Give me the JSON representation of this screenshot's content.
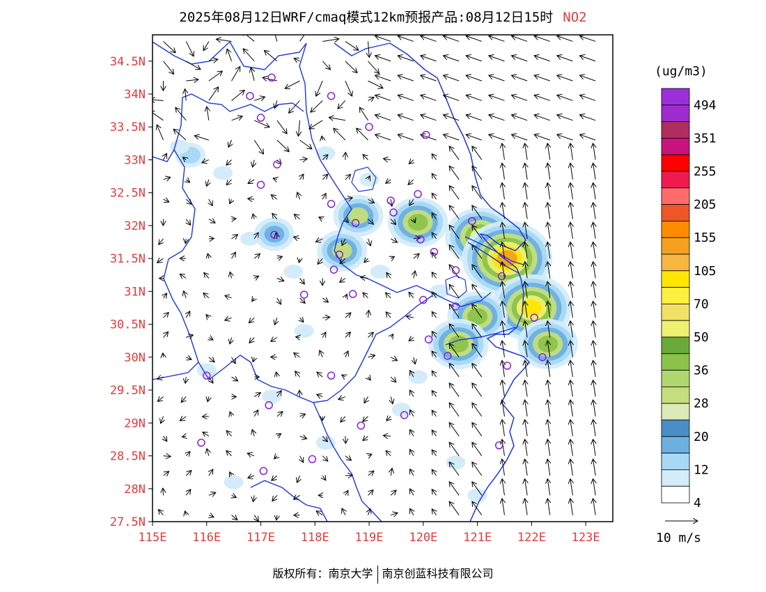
{
  "header": {
    "title": "2025年08月12日WRF/cmaq模式12km预报产品:08月12日15时",
    "pollutant": "NO2"
  },
  "axes": {
    "lat_labels": [
      "34.5N",
      "34N",
      "33.5N",
      "33N",
      "32.5N",
      "32N",
      "31.5N",
      "31N",
      "30.5N",
      "30N",
      "29.5N",
      "29N",
      "28.5N",
      "28N",
      "27.5N"
    ],
    "lon_labels": [
      "115E",
      "116E",
      "117E",
      "118E",
      "119E",
      "120E",
      "121E",
      "122E",
      "123E"
    ],
    "lon_range": [
      115,
      123.5
    ],
    "lat_range": [
      27.5,
      34.9
    ]
  },
  "legend": {
    "unit": "(ug/m3)",
    "labels": [
      "494",
      "351",
      "255",
      "205",
      "155",
      "105",
      "70",
      "50",
      "36",
      "28",
      "20",
      "12",
      "4"
    ],
    "colors_top_to_bottom": [
      "#9b30d8",
      "#a02bd0",
      "#b02d60",
      "#c8147c",
      "#ff0000",
      "#ee1c50",
      "#ff6b6b",
      "#ee5628",
      "#ff8c00",
      "#f5a020",
      "#f7b640",
      "#ffe600",
      "#ffef40",
      "#f2e068",
      "#eef070",
      "#6aaa3a",
      "#8cc24a",
      "#b0d670",
      "#c4de7c",
      "#dde9b8",
      "#4a8ec8",
      "#6cb0e0",
      "#a8d8f4",
      "#d4ecfa",
      "#ffffff"
    ]
  },
  "wind_scale": {
    "label": "10 m/s"
  },
  "footer": {
    "left": "版权所有：南京大学",
    "right": "南京创蓝科技有限公司"
  },
  "colors": {
    "boundary": "#1a35e0",
    "station": "#8a1fd0",
    "tick_text": "#e33b3b"
  },
  "stations": [
    {
      "lon": 117.2,
      "lat": 34.25
    },
    {
      "lon": 116.8,
      "lat": 33.97
    },
    {
      "lon": 118.3,
      "lat": 33.97
    },
    {
      "lon": 117.0,
      "lat": 33.64
    },
    {
      "lon": 119.0,
      "lat": 33.5
    },
    {
      "lon": 120.05,
      "lat": 33.38
    },
    {
      "lon": 117.3,
      "lat": 32.93
    },
    {
      "lon": 117.0,
      "lat": 32.62
    },
    {
      "lon": 118.3,
      "lat": 32.33
    },
    {
      "lon": 119.4,
      "lat": 32.38
    },
    {
      "lon": 119.9,
      "lat": 32.48
    },
    {
      "lon": 119.45,
      "lat": 32.2
    },
    {
      "lon": 120.9,
      "lat": 32.07
    },
    {
      "lon": 118.75,
      "lat": 32.04
    },
    {
      "lon": 117.25,
      "lat": 31.86
    },
    {
      "lon": 119.95,
      "lat": 31.79
    },
    {
      "lon": 118.45,
      "lat": 31.56
    },
    {
      "lon": 120.2,
      "lat": 31.6
    },
    {
      "lon": 118.35,
      "lat": 31.33
    },
    {
      "lon": 120.6,
      "lat": 31.32
    },
    {
      "lon": 121.45,
      "lat": 31.23
    },
    {
      "lon": 117.8,
      "lat": 30.95
    },
    {
      "lon": 118.7,
      "lat": 30.96
    },
    {
      "lon": 120.0,
      "lat": 30.87
    },
    {
      "lon": 120.6,
      "lat": 30.77
    },
    {
      "lon": 122.05,
      "lat": 30.6
    },
    {
      "lon": 120.1,
      "lat": 30.27
    },
    {
      "lon": 120.45,
      "lat": 30.02
    },
    {
      "lon": 121.55,
      "lat": 29.87
    },
    {
      "lon": 122.2,
      "lat": 30.0
    },
    {
      "lon": 116.0,
      "lat": 29.72
    },
    {
      "lon": 118.3,
      "lat": 29.72
    },
    {
      "lon": 117.15,
      "lat": 29.27
    },
    {
      "lon": 119.65,
      "lat": 29.12
    },
    {
      "lon": 118.85,
      "lat": 28.96
    },
    {
      "lon": 115.9,
      "lat": 28.7
    },
    {
      "lon": 121.4,
      "lat": 28.66
    },
    {
      "lon": 117.95,
      "lat": 28.45
    },
    {
      "lon": 117.05,
      "lat": 28.27
    }
  ],
  "concentration_patches": [
    {
      "lon": 115.7,
      "lat": 33.07,
      "level": 12
    },
    {
      "lon": 117.25,
      "lat": 31.87,
      "level": 20
    },
    {
      "lon": 118.5,
      "lat": 31.62,
      "level": 28
    },
    {
      "lon": 118.8,
      "lat": 32.15,
      "level": 28
    },
    {
      "lon": 119.9,
      "lat": 32.05,
      "level": 36
    },
    {
      "lon": 121.05,
      "lat": 31.83,
      "level": 50
    },
    {
      "lon": 121.55,
      "lat": 31.5,
      "level": 105
    },
    {
      "lon": 122.0,
      "lat": 30.75,
      "level": 70
    },
    {
      "lon": 121.0,
      "lat": 30.62,
      "level": 36
    },
    {
      "lon": 120.65,
      "lat": 30.2,
      "level": 36
    },
    {
      "lon": 122.3,
      "lat": 30.2,
      "level": 36
    }
  ]
}
